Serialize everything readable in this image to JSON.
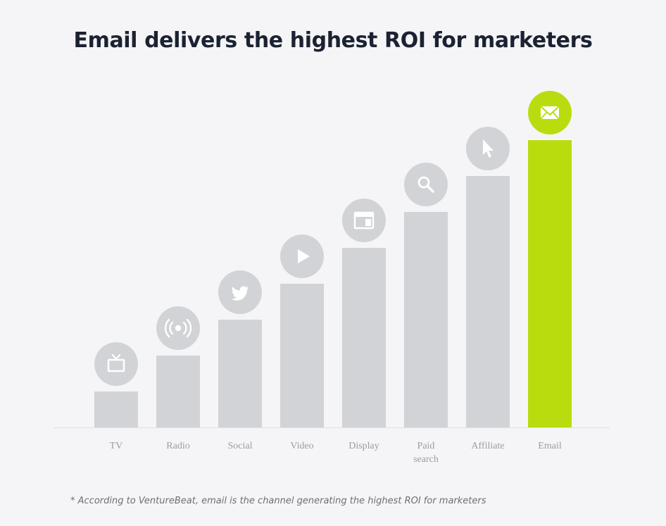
{
  "header": {
    "title": "Email delivers the highest ROI for marketers"
  },
  "footnote": "* According to VentureBeat, email is the channel generating the highest ROI for marketers",
  "colors": {
    "bar": "#d1d3d6",
    "highlight": "#b9dc0f",
    "icon": "#ffffff",
    "axis": "#dfe0e3"
  },
  "chart_data": {
    "type": "bar",
    "categories": [
      {
        "label": [
          "TV"
        ],
        "icon": "tv-icon",
        "value": 1
      },
      {
        "label": [
          "Radio"
        ],
        "icon": "radio-broadcast-icon",
        "value": 2
      },
      {
        "label": [
          "Social"
        ],
        "icon": "twitter-bird-icon",
        "value": 3
      },
      {
        "label": [
          "Video"
        ],
        "icon": "play-icon",
        "value": 4
      },
      {
        "label": [
          "Display"
        ],
        "icon": "browser-window-icon",
        "value": 5
      },
      {
        "label": [
          "Paid",
          "search"
        ],
        "icon": "search-icon",
        "value": 6
      },
      {
        "label": [
          "Affiliate"
        ],
        "icon": "cursor-icon",
        "value": 7
      },
      {
        "label": [
          "Email"
        ],
        "icon": "envelope-icon",
        "value": 8,
        "highlight": true
      }
    ],
    "ylim": [
      0,
      8
    ],
    "grid": false,
    "legend": false
  }
}
